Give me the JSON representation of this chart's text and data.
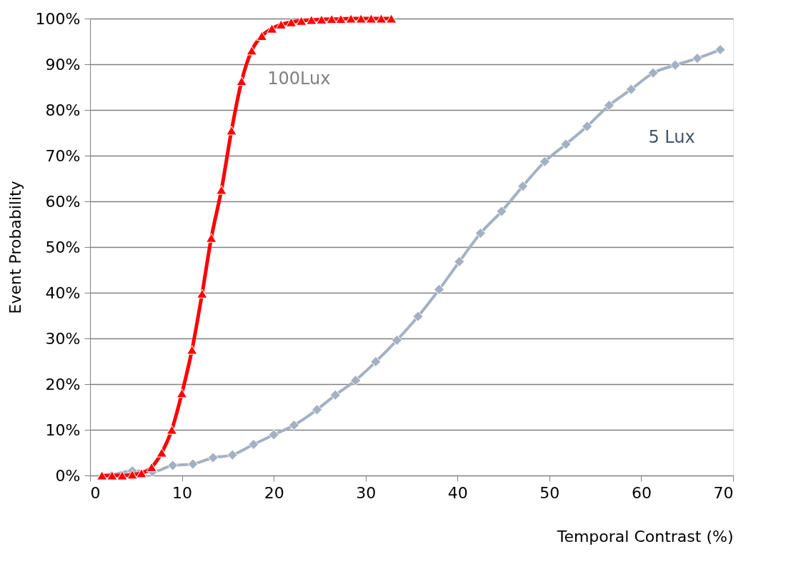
{
  "chart_data": {
    "type": "line",
    "xlabel": "Temporal Contrast (%)",
    "ylabel": "Event Probability",
    "xlim": [
      0,
      70
    ],
    "xticks": [
      0,
      10,
      20,
      30,
      40,
      50,
      60,
      70
    ],
    "ylim": [
      0,
      100
    ],
    "yticks": [
      {
        "value": 0,
        "label": "0%"
      },
      {
        "value": 10,
        "label": "10%"
      },
      {
        "value": 20,
        "label": "20%"
      },
      {
        "value": 30,
        "label": "30%"
      },
      {
        "value": 40,
        "label": "40%"
      },
      {
        "value": 50,
        "label": "50%"
      },
      {
        "value": 60,
        "label": "60%"
      },
      {
        "value": 70,
        "label": "70%"
      },
      {
        "value": 80,
        "label": "80%"
      },
      {
        "value": 90,
        "label": "90%"
      },
      {
        "value": 100,
        "label": "100%"
      }
    ],
    "grid": "y",
    "series": [
      {
        "name": "5 Lux",
        "color": "#a3b1c2",
        "marker": "diamond",
        "x": [
          2.35,
          4.6,
          6.8,
          9.0,
          11.2,
          13.4,
          15.5,
          17.8,
          20.0,
          22.2,
          24.7,
          26.7,
          28.9,
          31.1,
          33.4,
          35.7,
          38.0,
          40.2,
          42.5,
          44.8,
          47.1,
          49.5,
          51.8,
          54.1,
          56.5,
          58.9,
          61.3,
          63.7,
          66.1,
          68.6
        ],
        "values": [
          0,
          1,
          0.8,
          2.2,
          2.5,
          3.9,
          4.5,
          6.8,
          8.9,
          11.0,
          14.4,
          17.6,
          20.8,
          24.9,
          29.6,
          34.8,
          40.7,
          46.8,
          53.0,
          57.8,
          63.3,
          68.7,
          72.5,
          76.4,
          81.0,
          84.5,
          88.1,
          89.8,
          91.3,
          93.2
        ]
      },
      {
        "name": "100Lux",
        "color": "#ff0000",
        "marker": "triangle",
        "x": [
          1.3,
          2.4,
          3.5,
          4.6,
          5.6,
          6.7,
          7.8,
          8.9,
          10.0,
          11.1,
          12.2,
          13.2,
          14.3,
          15.4,
          16.5,
          17.6,
          18.7,
          19.8,
          20.8,
          21.9,
          23.0,
          24.1,
          25.2,
          26.3,
          27.3,
          28.4,
          29.5,
          30.6,
          31.7,
          32.8
        ],
        "values": [
          0,
          0,
          0,
          0.2,
          0.5,
          1.8,
          5,
          10,
          18,
          27.5,
          39.8,
          52,
          62.5,
          75.5,
          86.3,
          93,
          96.2,
          97.8,
          98.7,
          99.2,
          99.5,
          99.7,
          99.8,
          99.9,
          99.9,
          100,
          100,
          100,
          100,
          100
        ]
      }
    ]
  }
}
